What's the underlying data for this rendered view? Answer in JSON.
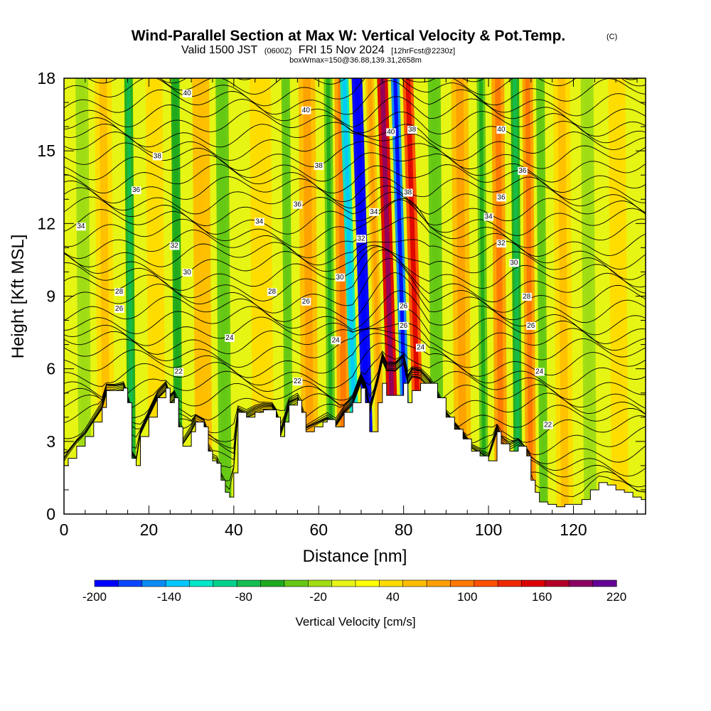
{
  "header": {
    "title": "Wind-Parallel Section at Max W: Vertical Velocity & Pot.Temp.",
    "title_mark": "(C)",
    "valid_prefix": "Valid 1500 JST",
    "valid_utc": "(0600Z)",
    "valid_date": "FRI 15 Nov 2024",
    "valid_fcst": "[12hrFcst@2230z]",
    "box_info": "boxWmax=150@36.88,139.31,2658m"
  },
  "chart_data": {
    "type": "heatmap",
    "xlabel": "Distance [nm]",
    "ylabel": "Height [Kft MSL]",
    "xlim": [
      0,
      137
    ],
    "ylim": [
      0,
      18
    ],
    "x_ticks": [
      "0",
      "20",
      "40",
      "60",
      "80",
      "100",
      "120"
    ],
    "y_ticks": [
      "0",
      "3",
      "6",
      "9",
      "12",
      "15",
      "18"
    ],
    "colorbar": {
      "label": "Vertical Velocity [cm/s]",
      "tick_labels": [
        "-200",
        "-140",
        "-80",
        "-20",
        "40",
        "100",
        "160",
        "220"
      ],
      "min": -200,
      "max": 220,
      "colors": [
        "#0000ff",
        "#0a46ff",
        "#0a8cf5",
        "#00c8ff",
        "#00e6c8",
        "#00d28c",
        "#14be50",
        "#1eaa1e",
        "#64c814",
        "#a0dc14",
        "#e6f514",
        "#ffff00",
        "#ffdc00",
        "#ffbe00",
        "#ffa000",
        "#ff7800",
        "#ff5000",
        "#f02800",
        "#dc0000",
        "#b40028",
        "#8c0064",
        "#640096"
      ]
    },
    "velocity_columns": [
      {
        "x": 5,
        "w": -20,
        "width": 3
      },
      {
        "x": 10,
        "w": 40,
        "width": 4
      },
      {
        "x": 16,
        "w": -60,
        "width": 2
      },
      {
        "x": 22,
        "w": 30,
        "width": 4
      },
      {
        "x": 27,
        "w": -50,
        "width": 2
      },
      {
        "x": 33,
        "w": 50,
        "width": 4
      },
      {
        "x": 38,
        "w": -30,
        "width": 3
      },
      {
        "x": 47,
        "w": 30,
        "width": 5
      },
      {
        "x": 53,
        "w": -30,
        "width": 2
      },
      {
        "x": 58,
        "w": 60,
        "width": 4
      },
      {
        "x": 63,
        "w": -40,
        "width": 2
      },
      {
        "x": 66,
        "w": 80,
        "width": 3
      },
      {
        "x": 69,
        "w": -110,
        "width": 2
      },
      {
        "x": 72,
        "w": -200,
        "width": 2.5
      },
      {
        "x": 75,
        "w": 60,
        "width": 2
      },
      {
        "x": 78,
        "w": 160,
        "width": 2.5
      },
      {
        "x": 81,
        "w": -150,
        "width": 2
      },
      {
        "x": 84,
        "w": 120,
        "width": 2.5
      },
      {
        "x": 88,
        "w": -30,
        "width": 3
      },
      {
        "x": 94,
        "w": 60,
        "width": 4
      },
      {
        "x": 99,
        "w": -40,
        "width": 2
      },
      {
        "x": 103,
        "w": 70,
        "width": 3
      },
      {
        "x": 107,
        "w": -60,
        "width": 2
      },
      {
        "x": 110,
        "w": 80,
        "width": 2.5
      },
      {
        "x": 113,
        "w": -30,
        "width": 2
      },
      {
        "x": 118,
        "w": 40,
        "width": 4
      },
      {
        "x": 124,
        "w": -20,
        "width": 3
      },
      {
        "x": 131,
        "w": 30,
        "width": 4
      }
    ],
    "terrain": [
      [
        0,
        2.0
      ],
      [
        1,
        2.3
      ],
      [
        3,
        2.8
      ],
      [
        5,
        3.2
      ],
      [
        7,
        3.8
      ],
      [
        9,
        4.4
      ],
      [
        10,
        5.1
      ],
      [
        12,
        5.1
      ],
      [
        14,
        5.2
      ],
      [
        15,
        4.6
      ],
      [
        16,
        2.3
      ],
      [
        17,
        2.0
      ],
      [
        18,
        3.2
      ],
      [
        20,
        4.0
      ],
      [
        22,
        4.8
      ],
      [
        24,
        5.2
      ],
      [
        25,
        4.6
      ],
      [
        26,
        4.8
      ],
      [
        27,
        3.6
      ],
      [
        28,
        2.8
      ],
      [
        30,
        3.4
      ],
      [
        31,
        3.8
      ],
      [
        33,
        3.6
      ],
      [
        34,
        2.6
      ],
      [
        35,
        2.2
      ],
      [
        36,
        2.1
      ],
      [
        37,
        1.4
      ],
      [
        38,
        0.9
      ],
      [
        39,
        0.7
      ],
      [
        40,
        1.7
      ],
      [
        41,
        4.2
      ],
      [
        43,
        4.0
      ],
      [
        45,
        4.2
      ],
      [
        47,
        4.3
      ],
      [
        49,
        4.3
      ],
      [
        50,
        4.0
      ],
      [
        51,
        3.2
      ],
      [
        52,
        3.8
      ],
      [
        53,
        4.5
      ],
      [
        55,
        4.7
      ],
      [
        56,
        4.2
      ],
      [
        57,
        3.4
      ],
      [
        59,
        3.6
      ],
      [
        61,
        3.8
      ],
      [
        62,
        3.9
      ],
      [
        64,
        3.6
      ],
      [
        66,
        4.2
      ],
      [
        68,
        4.6
      ],
      [
        70,
        5.2
      ],
      [
        71,
        4.6
      ],
      [
        72,
        3.4
      ],
      [
        74,
        4.6
      ],
      [
        75,
        5.4
      ],
      [
        76,
        4.9
      ],
      [
        78,
        4.9
      ],
      [
        80,
        5.4
      ],
      [
        81,
        4.6
      ],
      [
        82,
        5.1
      ],
      [
        84,
        5.4
      ],
      [
        86,
        5.4
      ],
      [
        88,
        4.8
      ],
      [
        90,
        4.0
      ],
      [
        92,
        3.5
      ],
      [
        94,
        3.1
      ],
      [
        96,
        2.6
      ],
      [
        98,
        2.4
      ],
      [
        100,
        2.2
      ],
      [
        102,
        3.4
      ],
      [
        103,
        2.9
      ],
      [
        105,
        2.6
      ],
      [
        107,
        2.8
      ],
      [
        109,
        2.4
      ],
      [
        110,
        1.4
      ],
      [
        111,
        0.9
      ],
      [
        112,
        0.5
      ],
      [
        114,
        0.4
      ],
      [
        116,
        0.3
      ],
      [
        118,
        0.4
      ],
      [
        120,
        0.4
      ],
      [
        122,
        0.6
      ],
      [
        124,
        1.0
      ],
      [
        126,
        1.3
      ],
      [
        128,
        1.2
      ],
      [
        130,
        1.0
      ],
      [
        132,
        0.9
      ],
      [
        134,
        0.7
      ],
      [
        136,
        0.6
      ],
      [
        137,
        0.6
      ]
    ],
    "theta_labels": [
      {
        "x": 29,
        "y": 17.4,
        "text": "40"
      },
      {
        "x": 57,
        "y": 16.7,
        "text": "40"
      },
      {
        "x": 77,
        "y": 15.8,
        "text": "40"
      },
      {
        "x": 82,
        "y": 15.9,
        "text": "38"
      },
      {
        "x": 103,
        "y": 15.9,
        "text": "40"
      },
      {
        "x": 22,
        "y": 14.8,
        "text": "38"
      },
      {
        "x": 60,
        "y": 14.4,
        "text": "38"
      },
      {
        "x": 108,
        "y": 14.2,
        "text": "36"
      },
      {
        "x": 17,
        "y": 13.4,
        "text": "36"
      },
      {
        "x": 81,
        "y": 13.3,
        "text": "38"
      },
      {
        "x": 103,
        "y": 13.1,
        "text": "36"
      },
      {
        "x": 55,
        "y": 12.8,
        "text": "36"
      },
      {
        "x": 73,
        "y": 12.5,
        "text": "34"
      },
      {
        "x": 100,
        "y": 12.3,
        "text": "34"
      },
      {
        "x": 4,
        "y": 11.9,
        "text": "34"
      },
      {
        "x": 46,
        "y": 12.1,
        "text": "34"
      },
      {
        "x": 70,
        "y": 11.4,
        "text": "32"
      },
      {
        "x": 26,
        "y": 11.1,
        "text": "32"
      },
      {
        "x": 103,
        "y": 11.2,
        "text": "32"
      },
      {
        "x": 106,
        "y": 10.4,
        "text": "30"
      },
      {
        "x": 29,
        "y": 10.0,
        "text": "30"
      },
      {
        "x": 65,
        "y": 9.8,
        "text": "30"
      },
      {
        "x": 13,
        "y": 9.2,
        "text": "28"
      },
      {
        "x": 49,
        "y": 9.2,
        "text": "28"
      },
      {
        "x": 109,
        "y": 9.0,
        "text": "28"
      },
      {
        "x": 57,
        "y": 8.8,
        "text": "26"
      },
      {
        "x": 80,
        "y": 8.6,
        "text": "26"
      },
      {
        "x": 13,
        "y": 8.5,
        "text": "26"
      },
      {
        "x": 80,
        "y": 7.8,
        "text": "26"
      },
      {
        "x": 110,
        "y": 7.8,
        "text": "26"
      },
      {
        "x": 39,
        "y": 7.3,
        "text": "24"
      },
      {
        "x": 64,
        "y": 7.2,
        "text": "24"
      },
      {
        "x": 84,
        "y": 6.9,
        "text": "24"
      },
      {
        "x": 112,
        "y": 5.9,
        "text": "24"
      },
      {
        "x": 27,
        "y": 5.9,
        "text": "22"
      },
      {
        "x": 55,
        "y": 5.5,
        "text": "22"
      },
      {
        "x": 114,
        "y": 3.7,
        "text": "22"
      }
    ]
  }
}
